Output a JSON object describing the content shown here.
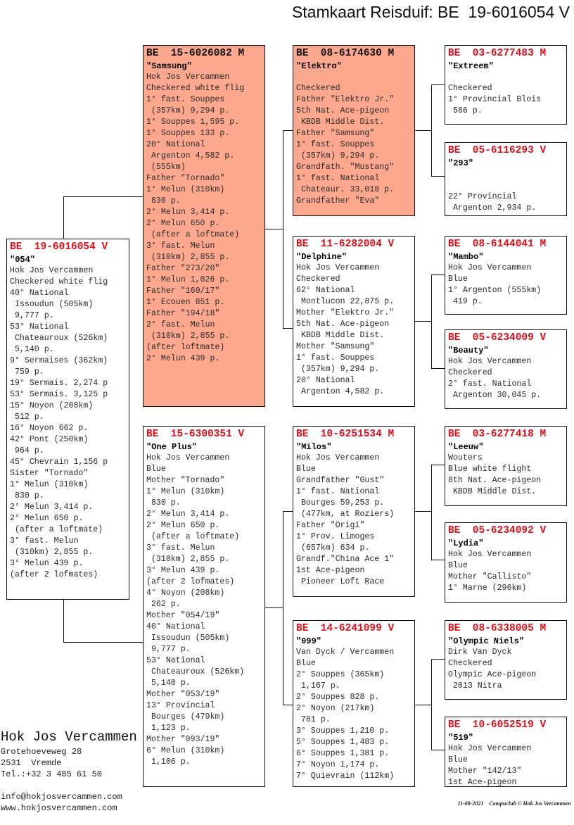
{
  "title": "Stamkaart Reisduif: BE  19-6016054 V",
  "pigeons": {
    "subject": {
      "ring": "BE  19-6016054 V",
      "name": "\"054\"",
      "lines": [
        "Hok Jos Vercammen",
        "Checkered white flig",
        "40° National",
        " Issoudun (505km)",
        " 9,777 p.",
        "53° National",
        " Chateauroux (526km)",
        " 5,140 p.",
        "9° Sermaises (362km)",
        " 759 p.",
        "19° Sermais. 2,274 p",
        "53° Sermais. 3,125 p",
        "15° Noyon (208km)",
        " 512 p.",
        "16° Noyon 662 p.",
        "42° Pont (250km)",
        " 964 p.",
        "45° Chevrain 1,156 p",
        "Sister \"Tornado\"",
        "1° Melun (310km)",
        " 830 p.",
        "2° Melun 3,414 p.",
        "2° Melun 650 p.",
        " (after a loftmate)",
        "3° fast. Melun",
        " (310km) 2,855 p.",
        "3° Melun 439 p.",
        "(after 2 lofmates)"
      ]
    },
    "sire": {
      "ring": "BE  15-6026082 M",
      "name": "\"Samsung\"",
      "lines": [
        "Hok Jos Vercammen",
        "Checkered white flig",
        "1° fast. Souppes",
        " (357km) 9,294 p.",
        "1° Souppes 1,595 p.",
        "1° Souppes 133 p.",
        "20° National",
        " Argenton 4,582 p.",
        " (555km)",
        "Father \"Tornado\"",
        "1° Melun (310km)",
        " 830 p.",
        "2° Melun 3,414 p.",
        "2° Melun 650 p.",
        " (after a loftmate)",
        "3° fast. Melun",
        " (310km) 2,855 p.",
        "Father \"273/20\"",
        "1° Melun 1,026 p.",
        "Father \"160/17\"",
        "1° Ecouen 851 p.",
        "Father \"194/18\"",
        "2° fast. Melun",
        " (310km) 2,855 p.",
        "(after loftmate)",
        "2° Melun 439 p."
      ]
    },
    "dam": {
      "ring": "BE  15-6300351 V",
      "name": "\"One Plus\"",
      "lines": [
        "Hok Jos Vercammen",
        "Blue",
        "Mother \"Tornado\"",
        "1° Melun (310km)",
        " 830 p.",
        "2° Melun 3,414 p.",
        "2° Melun 650 p.",
        " (after a loftmate)",
        "3° fast. Melun",
        " (310km) 2,855 p.",
        "3° Melun 439 p.",
        "(after 2 lofmates)",
        "4° Noyon (208km)",
        " 262 p.",
        "Mother \"054/19\"",
        "40° National",
        " Issoudun (505km)",
        " 9,777 p.",
        "53° National",
        " Chateauroux (526km)",
        " 5,140 p.",
        "Mother \"053/19\"",
        "13° Provincial",
        " Bourges (479km)",
        " 1,123 p.",
        "Mother \"093/19\"",
        "6° Melun (310km)",
        " 1,106 p."
      ]
    },
    "ss": {
      "ring": "BE  08-6174630 M",
      "name": "\"Elektro\"",
      "lines": [
        "",
        "Checkered",
        "Father \"Elektro Jr.\"",
        "5th Nat. Ace-pigeon",
        " KBDB Middle Dist.",
        "Father \"Samsung\"",
        "1° fast. Souppes",
        " (357km) 9,294 p.",
        "Grandfath. \"Mustang\"",
        "1° fast. National",
        " Chateaur. 33,018 p.",
        "Grandfather \"Eva\""
      ]
    },
    "sd": {
      "ring": "BE  11-6282004 V",
      "name": "\"Delphine\"",
      "lines": [
        "Hok Jos Vercammen",
        "Checkered",
        "62° National",
        " Montlucon 22,875 p.",
        "Mother \"Elektro Jr.\"",
        "5th Nat. Ace-pigeon",
        " KBDB Middle Dist.",
        "Mother \"Samsung\"",
        "1° fast. Souppes",
        " (357km) 9,294 p.",
        "20° National",
        " Argenton 4,582 p."
      ]
    },
    "ds": {
      "ring": "BE  10-6251534 M",
      "name": "\"Milos\"",
      "lines": [
        "Hok Jos Vercammen",
        "Blue",
        "Grandfather \"Gust\"",
        "1° fast. National",
        " Bourges 59,253 p.",
        " (477km, at Roziers)",
        "Father \"Origi\"",
        "1° Prov. Limoges",
        " (657km) 634 p.",
        "Grandf.\"China Ace 1\"",
        "1st Ace-pigeon",
        " Pioneer Loft Race"
      ]
    },
    "dd": {
      "ring": "BE  14-6241099 V",
      "name": "\"099\"",
      "lines": [
        "Van Dyck / Vercammen",
        "Blue",
        "2° Souppes (365km)",
        " 1,167 p.",
        "2° Souppes 828 p.",
        "2° Noyon (217km)",
        " 781 p.",
        "3° Souppes 1,210 p.",
        "5° Souppes 1,483 p.",
        "6° Souppes 1,381 p.",
        "7° Noyon 1,174 p.",
        "7° Quievrain (112km)"
      ]
    },
    "sss": {
      "ring": "BE  03-6277483 M",
      "name": "\"Extreem\"",
      "lines": [
        "",
        "Checkered",
        "1° Provincial Blois",
        " 586 p."
      ]
    },
    "ssd": {
      "ring": "BE  05-6116293 V",
      "name": "\"293\"",
      "lines": [
        "",
        "",
        "22° Provincial",
        " Argenton 2,934 p."
      ]
    },
    "sds": {
      "ring": "BE  08-6144041 M",
      "name": "\"Mambo\"",
      "lines": [
        "Hok Jos Vercammen",
        "Blue",
        "1° Argenton (555km)",
        " 419 p."
      ]
    },
    "sdd": {
      "ring": "BE  05-6234009 V",
      "name": "\"Beauty\"",
      "lines": [
        "Hok Jos Vercammen",
        "Checkered",
        "2° fast. National",
        " Argenton 30,045 p."
      ]
    },
    "dss": {
      "ring": "BE  03-6277418 M",
      "name": "\"Leeuw\"",
      "lines": [
        "Wouters",
        "Blue white flight",
        "8th Nat. Ace-pigeon",
        " KBDB Middle Dist."
      ]
    },
    "dsd": {
      "ring": "BE  05-6234092 V",
      "name": "\"Lydia\"",
      "lines": [
        "Hok Jos Vercammen",
        "Blue",
        "Mother \"Callisto\"",
        "1° Marne (296km)"
      ]
    },
    "dds": {
      "ring": "BE  08-6338005 M",
      "name": "\"Olympic Niels\"",
      "lines": [
        "Dirk Van Dyck",
        "Checkered",
        "Olympic Ace-pigeon",
        " 2013 Nitra"
      ]
    },
    "ddd": {
      "ring": "BE  10-6052519 V",
      "name": "\"519\"",
      "lines": [
        "Hok Jos Vercammen",
        "Blue",
        "Mother \"142/13\"",
        "1st Ace-pigeon"
      ]
    }
  },
  "highlight_color": "#fca88f",
  "ring_color": "#e0101a",
  "breeder": {
    "name": "Hok Jos Vercammen",
    "street": "Grotehoeveweg 28",
    "city": "2531  Vremde",
    "phone": "Tel.:+32 3 485 61 50",
    "email": "info@hokjosvercammen.com",
    "web": "www.hokjosvercammen.com"
  },
  "footer": {
    "date": "11-08-2021",
    "credit": "Compuclub © Hok Jos Vercammen"
  }
}
